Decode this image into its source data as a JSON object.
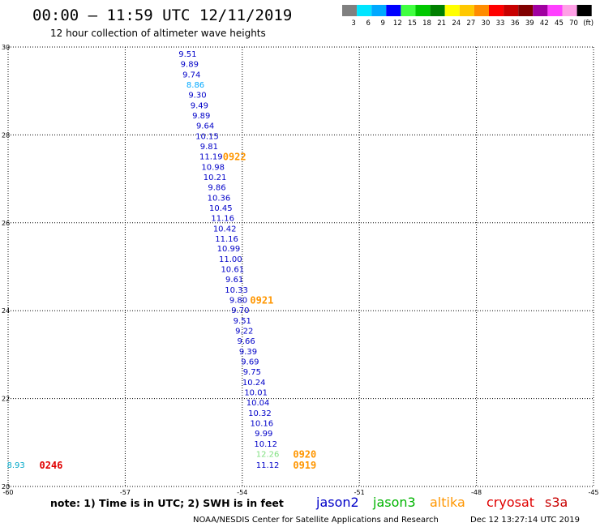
{
  "chart_data": {
    "type": "scatter",
    "title": "00:00 – 11:59 UTC 12/11/2019",
    "subtitle": "12 hour collection of altimeter wave heights",
    "xlim": [
      -60,
      -45
    ],
    "ylim": [
      20,
      30
    ],
    "x_ticks": [
      "-60",
      "-57",
      "-54",
      "-51",
      "-48",
      "-45"
    ],
    "y_ticks": [
      "20",
      "22",
      "24",
      "26",
      "28",
      "30"
    ],
    "grid": true,
    "colorbar": {
      "labels": [
        "3",
        "6",
        "9",
        "12",
        "15",
        "18",
        "21",
        "24",
        "27",
        "30",
        "33",
        "36",
        "39",
        "42",
        "45",
        "70",
        "(ft)"
      ],
      "colors": [
        "#808080",
        "#00e5ff",
        "#00a8ff",
        "#0000ff",
        "#40ff40",
        "#00c800",
        "#008000",
        "#ffff00",
        "#ffc800",
        "#ff8c00",
        "#ff0000",
        "#c80000",
        "#800000",
        "#a000a0",
        "#ff40ff",
        "#ffa0e6",
        "#000000"
      ]
    },
    "series": [
      {
        "name": "jason2",
        "color": "#0000c8",
        "points": [
          {
            "x": -55.4,
            "y": 29.85,
            "label": "9.51"
          },
          {
            "x": -55.35,
            "y": 29.62,
            "label": "9.89"
          },
          {
            "x": -55.3,
            "y": 29.38,
            "label": "9.74"
          },
          {
            "x": -55.2,
            "y": 29.15,
            "label": "8.86",
            "color": "#00a8ff"
          },
          {
            "x": -55.15,
            "y": 28.92,
            "label": "9.30"
          },
          {
            "x": -55.1,
            "y": 28.68,
            "label": "9.49"
          },
          {
            "x": -55.05,
            "y": 28.45,
            "label": "9.89"
          },
          {
            "x": -54.95,
            "y": 28.22,
            "label": "9.64"
          },
          {
            "x": -54.9,
            "y": 27.98,
            "label": "10.15"
          },
          {
            "x": -54.85,
            "y": 27.75,
            "label": "9.81"
          },
          {
            "x": -54.8,
            "y": 27.52,
            "label": "11.19"
          },
          {
            "x": -54.75,
            "y": 27.28,
            "label": "10.98"
          },
          {
            "x": -54.7,
            "y": 27.05,
            "label": "10.21"
          },
          {
            "x": -54.65,
            "y": 26.82,
            "label": "9.86"
          },
          {
            "x": -54.6,
            "y": 26.58,
            "label": "10.36"
          },
          {
            "x": -54.55,
            "y": 26.35,
            "label": "10.45"
          },
          {
            "x": -54.5,
            "y": 26.12,
            "label": "11.16"
          },
          {
            "x": -54.45,
            "y": 25.88,
            "label": "10.42"
          },
          {
            "x": -54.4,
            "y": 25.65,
            "label": "11.16"
          },
          {
            "x": -54.35,
            "y": 25.42,
            "label": "10.99"
          },
          {
            "x": -54.3,
            "y": 25.18,
            "label": "11.00"
          },
          {
            "x": -54.25,
            "y": 24.95,
            "label": "10.61"
          },
          {
            "x": -54.2,
            "y": 24.72,
            "label": "9.61"
          },
          {
            "x": -54.15,
            "y": 24.48,
            "label": "10.33"
          },
          {
            "x": -54.1,
            "y": 24.25,
            "label": "9.80"
          },
          {
            "x": -54.05,
            "y": 24.02,
            "label": "9.70"
          },
          {
            "x": -54.0,
            "y": 23.78,
            "label": "9.51"
          },
          {
            "x": -53.95,
            "y": 23.55,
            "label": "9.22"
          },
          {
            "x": -53.9,
            "y": 23.32,
            "label": "9.66"
          },
          {
            "x": -53.85,
            "y": 23.08,
            "label": "9.39"
          },
          {
            "x": -53.8,
            "y": 22.85,
            "label": "9.69"
          },
          {
            "x": -53.75,
            "y": 22.62,
            "label": "9.75"
          },
          {
            "x": -53.7,
            "y": 22.38,
            "label": "10.24"
          },
          {
            "x": -53.65,
            "y": 22.15,
            "label": "10.01"
          },
          {
            "x": -53.6,
            "y": 21.92,
            "label": "10.04"
          },
          {
            "x": -53.55,
            "y": 21.68,
            "label": "10.32"
          },
          {
            "x": -53.5,
            "y": 21.45,
            "label": "10.16"
          },
          {
            "x": -53.45,
            "y": 21.22,
            "label": "9.99"
          },
          {
            "x": -53.4,
            "y": 20.98,
            "label": "10.12"
          },
          {
            "x": -53.35,
            "y": 20.5,
            "label": "11.12"
          }
        ]
      },
      {
        "name": "jason3",
        "color": "#00b400",
        "points": [
          {
            "x": -53.35,
            "y": 20.75,
            "label": "12.26",
            "color": "#80e080"
          }
        ]
      },
      {
        "name": "altika",
        "color": "#ff9600",
        "points": []
      },
      {
        "name": "cryosat",
        "color": "#e00000",
        "points": [
          {
            "x": -59.8,
            "y": 20.5,
            "label": "8.93",
            "color": "#00a8c8"
          }
        ]
      },
      {
        "name": "s3a",
        "color": "#c80000",
        "points": []
      }
    ],
    "pass_times": [
      {
        "x": -54.5,
        "y": 27.52,
        "label": "0922",
        "color": "#ff9600"
      },
      {
        "x": -53.8,
        "y": 24.25,
        "label": "0921",
        "color": "#ff9600"
      },
      {
        "x": -52.7,
        "y": 20.75,
        "label": "0920",
        "color": "#ff9600"
      },
      {
        "x": -52.7,
        "y": 20.5,
        "label": "0919",
        "color": "#ff9600"
      },
      {
        "x": -59.2,
        "y": 20.5,
        "label": "0246",
        "color": "#e00000"
      }
    ]
  },
  "note": "note: 1) Time is in UTC; 2) SWH is in feet",
  "satellites": [
    {
      "name": "jason2",
      "color": "#0000c8"
    },
    {
      "name": "jason3",
      "color": "#00b400"
    },
    {
      "name": "altika",
      "color": "#ff9600"
    },
    {
      "name": "cryosat",
      "color": "#e00000"
    },
    {
      "name": "s3a",
      "color": "#c80000"
    }
  ],
  "credit": "NOAA/NESDIS Center for Satellite Applications and Research",
  "timestamp": "Dec 12 13:27:14 UTC 2019"
}
